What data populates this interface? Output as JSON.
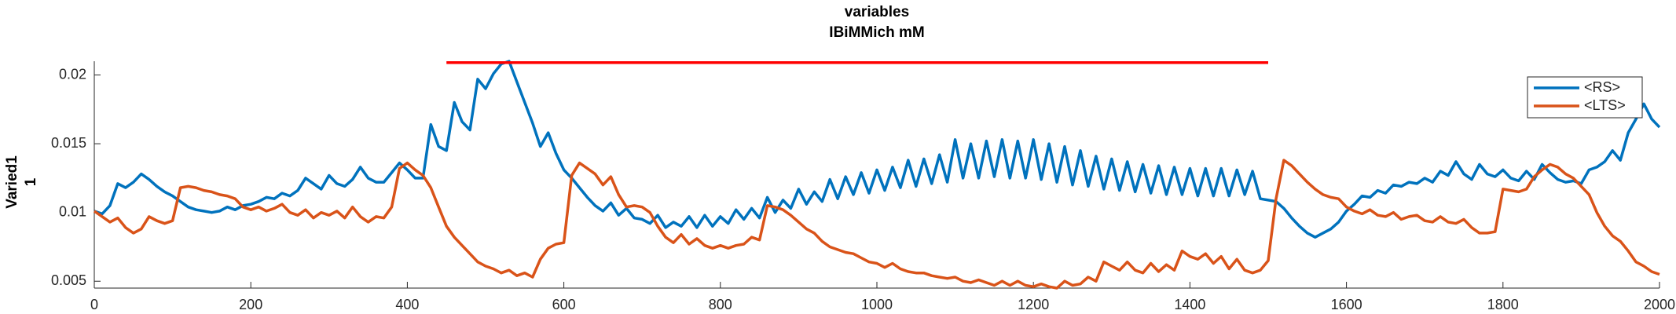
{
  "chart_data": {
    "type": "line",
    "title": "variables",
    "subtitle": "IBiMMich mM",
    "ylabel": [
      "Varied1",
      "1"
    ],
    "xlim": [
      0,
      2000
    ],
    "xticks": [
      0,
      200,
      400,
      600,
      800,
      1000,
      1200,
      1400,
      1600,
      1800,
      2000
    ],
    "ylim": [
      0.0045,
      0.021
    ],
    "yticks": [
      0.005,
      0.01,
      0.015,
      0.02
    ],
    "grid": false,
    "legend": "northeast",
    "hline": {
      "x": [
        450,
        1500
      ],
      "y": 0.0209,
      "color": "#ff0000"
    },
    "x": [
      0,
      10,
      20,
      30,
      40,
      50,
      60,
      70,
      80,
      90,
      100,
      110,
      120,
      130,
      140,
      150,
      160,
      170,
      180,
      190,
      200,
      210,
      220,
      230,
      240,
      250,
      260,
      270,
      280,
      290,
      300,
      310,
      320,
      330,
      340,
      350,
      360,
      370,
      380,
      390,
      400,
      410,
      420,
      430,
      440,
      450,
      460,
      470,
      480,
      490,
      500,
      510,
      520,
      530,
      540,
      550,
      560,
      570,
      580,
      590,
      600,
      610,
      620,
      630,
      640,
      650,
      660,
      670,
      680,
      690,
      700,
      710,
      720,
      730,
      740,
      750,
      760,
      770,
      780,
      790,
      800,
      810,
      820,
      830,
      840,
      850,
      860,
      870,
      880,
      890,
      900,
      910,
      920,
      930,
      940,
      950,
      960,
      970,
      980,
      990,
      1000,
      1010,
      1020,
      1030,
      1040,
      1050,
      1060,
      1070,
      1080,
      1090,
      1100,
      1110,
      1120,
      1130,
      1140,
      1150,
      1160,
      1170,
      1180,
      1190,
      1200,
      1210,
      1220,
      1230,
      1240,
      1250,
      1260,
      1270,
      1280,
      1290,
      1300,
      1310,
      1320,
      1330,
      1340,
      1350,
      1360,
      1370,
      1380,
      1390,
      1400,
      1410,
      1420,
      1430,
      1440,
      1450,
      1460,
      1470,
      1480,
      1490,
      1500,
      1510,
      1520,
      1530,
      1540,
      1550,
      1560,
      1570,
      1580,
      1590,
      1600,
      1610,
      1620,
      1630,
      1640,
      1650,
      1660,
      1670,
      1680,
      1690,
      1700,
      1710,
      1720,
      1730,
      1740,
      1750,
      1760,
      1770,
      1780,
      1790,
      1800,
      1810,
      1820,
      1830,
      1840,
      1850,
      1860,
      1870,
      1880,
      1890,
      1900,
      1910,
      1920,
      1930,
      1940,
      1950,
      1960,
      1970,
      1980,
      1990,
      2000
    ],
    "series": [
      {
        "name": "<RS>",
        "color": "#0072bd",
        "values": [
          0.0101,
          0.0099,
          0.0105,
          0.0121,
          0.0118,
          0.0122,
          0.0128,
          0.0124,
          0.0119,
          0.0115,
          0.0112,
          0.0108,
          0.0104,
          0.0102,
          0.0101,
          0.01,
          0.0101,
          0.0104,
          0.0102,
          0.0105,
          0.0106,
          0.0108,
          0.0111,
          0.011,
          0.0114,
          0.0112,
          0.0116,
          0.0125,
          0.0121,
          0.0117,
          0.0127,
          0.0121,
          0.0119,
          0.0124,
          0.0133,
          0.0125,
          0.0122,
          0.0122,
          0.0129,
          0.0136,
          0.0131,
          0.0125,
          0.0125,
          0.0164,
          0.0148,
          0.0145,
          0.018,
          0.0166,
          0.016,
          0.0197,
          0.019,
          0.0201,
          0.0208,
          0.021,
          0.0195,
          0.018,
          0.0165,
          0.0148,
          0.0158,
          0.0143,
          0.0131,
          0.0125,
          0.0118,
          0.0111,
          0.0105,
          0.0101,
          0.0107,
          0.0098,
          0.0103,
          0.0096,
          0.0095,
          0.0092,
          0.0098,
          0.0089,
          0.0093,
          0.009,
          0.0097,
          0.0089,
          0.0098,
          0.009,
          0.0097,
          0.0092,
          0.0102,
          0.0095,
          0.0103,
          0.0096,
          0.0111,
          0.01,
          0.0109,
          0.0103,
          0.0117,
          0.0106,
          0.0115,
          0.0108,
          0.0124,
          0.011,
          0.0126,
          0.0113,
          0.0129,
          0.0114,
          0.0131,
          0.0116,
          0.0133,
          0.0118,
          0.0138,
          0.0119,
          0.0139,
          0.0121,
          0.0142,
          0.0122,
          0.0153,
          0.0125,
          0.015,
          0.0125,
          0.0152,
          0.0126,
          0.0153,
          0.0125,
          0.0152,
          0.0125,
          0.0153,
          0.0124,
          0.015,
          0.0122,
          0.0148,
          0.012,
          0.0145,
          0.0119,
          0.0141,
          0.0117,
          0.0139,
          0.0116,
          0.0137,
          0.0115,
          0.0135,
          0.0114,
          0.0134,
          0.0113,
          0.0133,
          0.0113,
          0.0132,
          0.0112,
          0.0132,
          0.0112,
          0.0132,
          0.0112,
          0.0131,
          0.0113,
          0.013,
          0.011,
          0.0109,
          0.0108,
          0.0103,
          0.0096,
          0.009,
          0.0085,
          0.0082,
          0.0085,
          0.0088,
          0.0093,
          0.0101,
          0.0106,
          0.0112,
          0.0111,
          0.0116,
          0.0114,
          0.012,
          0.0119,
          0.0122,
          0.0121,
          0.0125,
          0.0122,
          0.013,
          0.0127,
          0.0137,
          0.0128,
          0.0124,
          0.0135,
          0.0128,
          0.0126,
          0.0131,
          0.0125,
          0.0123,
          0.013,
          0.0124,
          0.0135,
          0.0129,
          0.0124,
          0.0122,
          0.0123,
          0.0121,
          0.0131,
          0.0133,
          0.0137,
          0.0145,
          0.0138,
          0.0158,
          0.0168,
          0.0179,
          0.0168,
          0.0162
        ]
      },
      {
        "name": "<LTS>",
        "color": "#d95319",
        "values": [
          0.0101,
          0.0097,
          0.0093,
          0.0096,
          0.0089,
          0.0085,
          0.0088,
          0.0097,
          0.0094,
          0.0092,
          0.0094,
          0.0118,
          0.0119,
          0.0118,
          0.0116,
          0.0115,
          0.0113,
          0.0112,
          0.011,
          0.0104,
          0.0102,
          0.0104,
          0.0101,
          0.0103,
          0.0106,
          0.01,
          0.0098,
          0.0102,
          0.0096,
          0.01,
          0.0098,
          0.0101,
          0.0096,
          0.0104,
          0.0097,
          0.0093,
          0.0097,
          0.0096,
          0.0104,
          0.0132,
          0.0136,
          0.0131,
          0.0127,
          0.0118,
          0.0104,
          0.009,
          0.0082,
          0.0076,
          0.007,
          0.0064,
          0.0061,
          0.0059,
          0.0056,
          0.0058,
          0.0054,
          0.0056,
          0.0053,
          0.0066,
          0.0074,
          0.0077,
          0.0078,
          0.0127,
          0.0136,
          0.0132,
          0.0128,
          0.012,
          0.0126,
          0.0113,
          0.0104,
          0.0105,
          0.0104,
          0.01,
          0.009,
          0.0082,
          0.0078,
          0.0084,
          0.0077,
          0.0081,
          0.0076,
          0.0074,
          0.0076,
          0.0074,
          0.0076,
          0.0077,
          0.0082,
          0.008,
          0.0105,
          0.0104,
          0.0102,
          0.0098,
          0.0093,
          0.0088,
          0.0085,
          0.0079,
          0.0075,
          0.0073,
          0.0071,
          0.007,
          0.0067,
          0.0064,
          0.0063,
          0.006,
          0.0063,
          0.0059,
          0.0057,
          0.0056,
          0.0056,
          0.0054,
          0.0053,
          0.0052,
          0.0053,
          0.005,
          0.0049,
          0.0051,
          0.0049,
          0.0047,
          0.005,
          0.0047,
          0.005,
          0.0047,
          0.0046,
          0.0048,
          0.0046,
          0.0045,
          0.005,
          0.0047,
          0.0048,
          0.0053,
          0.005,
          0.0064,
          0.0061,
          0.0058,
          0.0064,
          0.0058,
          0.0056,
          0.0063,
          0.0057,
          0.0062,
          0.0058,
          0.0072,
          0.0068,
          0.0066,
          0.007,
          0.0063,
          0.0068,
          0.0059,
          0.0066,
          0.0058,
          0.0056,
          0.0058,
          0.0065,
          0.011,
          0.0138,
          0.0134,
          0.0128,
          0.0122,
          0.0117,
          0.0113,
          0.0111,
          0.011,
          0.0104,
          0.0101,
          0.0099,
          0.0102,
          0.0098,
          0.0097,
          0.01,
          0.0095,
          0.0097,
          0.0098,
          0.0094,
          0.0093,
          0.0097,
          0.0093,
          0.0092,
          0.0095,
          0.0089,
          0.0085,
          0.0085,
          0.0086,
          0.0117,
          0.0116,
          0.0115,
          0.0117,
          0.0126,
          0.0131,
          0.0135,
          0.0133,
          0.0128,
          0.0125,
          0.0119,
          0.0113,
          0.01,
          0.009,
          0.0083,
          0.0079,
          0.0072,
          0.0064,
          0.0061,
          0.0057,
          0.0055
        ]
      }
    ]
  }
}
